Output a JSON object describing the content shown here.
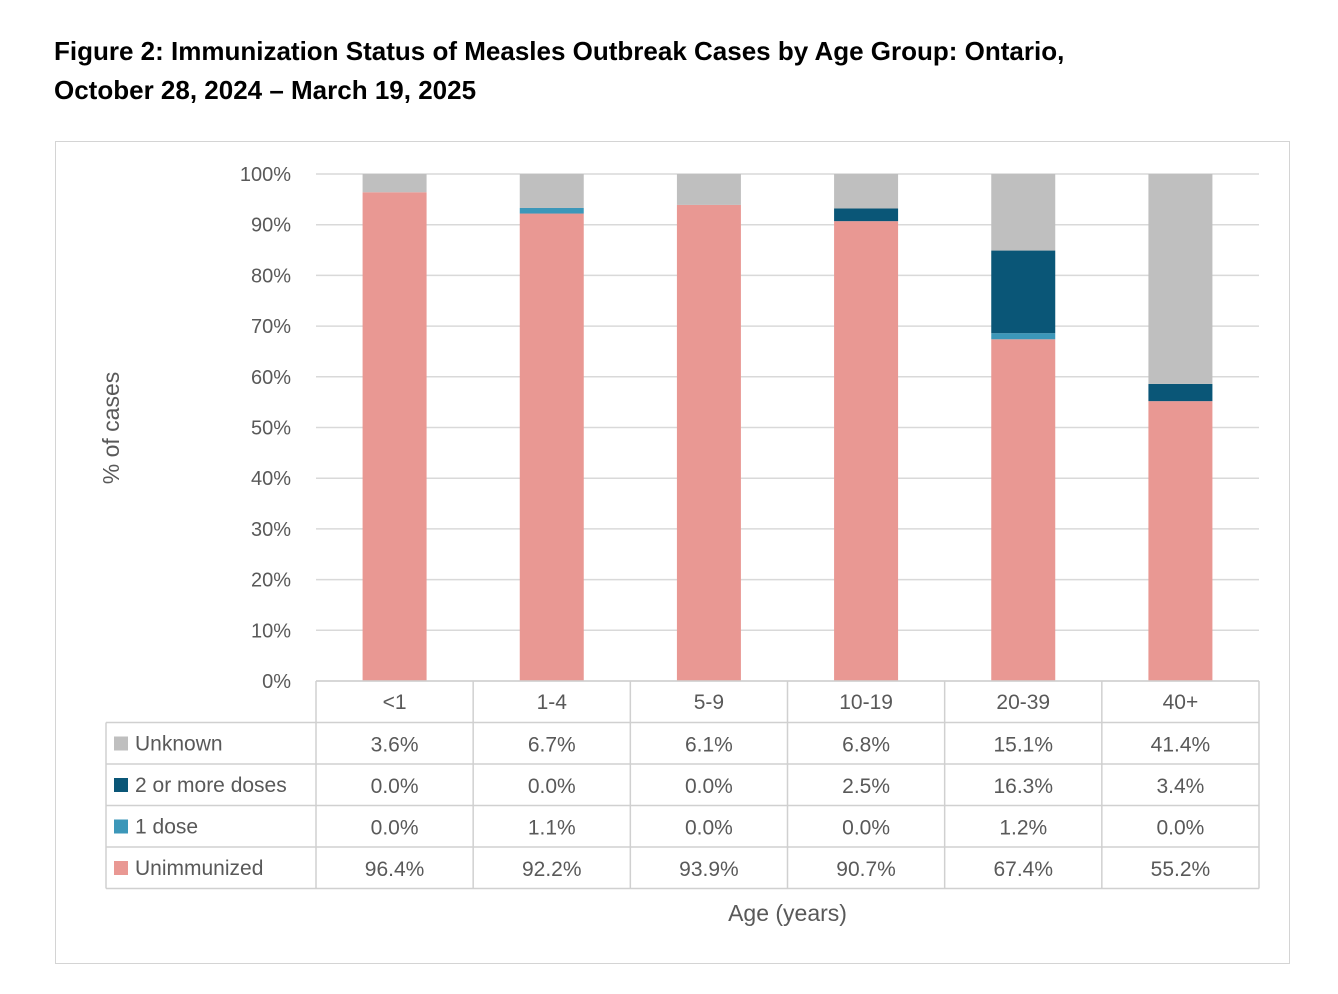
{
  "title_line1": "Figure 2: Immunization Status of Measles Outbreak Cases by Age Group: Ontario,",
  "title_line2": "October 28, 2024 – March 19, 2025",
  "chart_data": {
    "type": "bar",
    "stacked": true,
    "categories": [
      "<1",
      "1-4",
      "5-9",
      "10-19",
      "20-39",
      "40+"
    ],
    "series": [
      {
        "name": "Unimmunized",
        "color": "#e99893",
        "values": [
          96.4,
          92.2,
          93.9,
          90.7,
          67.4,
          55.2
        ],
        "labels": [
          "96.4%",
          "92.2%",
          "93.9%",
          "90.7%",
          "67.4%",
          "55.2%"
        ]
      },
      {
        "name": "1 dose",
        "color": "#3c97b9",
        "values": [
          0.0,
          1.1,
          0.0,
          0.0,
          1.2,
          0.0
        ],
        "labels": [
          "0.0%",
          "1.1%",
          "0.0%",
          "0.0%",
          "1.2%",
          "0.0%"
        ]
      },
      {
        "name": "2 or more doses",
        "color": "#0a5677",
        "values": [
          0.0,
          0.0,
          0.0,
          2.5,
          16.3,
          3.4
        ],
        "labels": [
          "0.0%",
          "0.0%",
          "0.0%",
          "2.5%",
          "16.3%",
          "3.4%"
        ]
      },
      {
        "name": "Unknown",
        "color": "#bfbfbf",
        "values": [
          3.6,
          6.7,
          6.1,
          6.8,
          15.1,
          41.4
        ],
        "labels": [
          "3.6%",
          "6.7%",
          "6.1%",
          "6.8%",
          "15.1%",
          "41.4%"
        ]
      }
    ],
    "table_row_order": [
      "Unknown",
      "2 or more doses",
      "1 dose",
      "Unimmunized"
    ],
    "yticks": [
      "0%",
      "10%",
      "20%",
      "30%",
      "40%",
      "50%",
      "60%",
      "70%",
      "80%",
      "90%",
      "100%"
    ],
    "ylim": [
      0,
      100
    ],
    "ylabel": "% of cases",
    "xlabel": "Age (years)",
    "grid": true,
    "legend": "data-table"
  }
}
